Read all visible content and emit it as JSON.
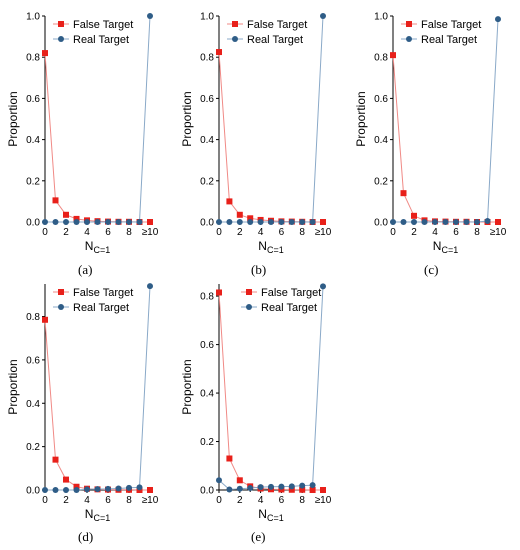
{
  "figure": {
    "panel_labels": [
      "(a)",
      "(b)",
      "(c)",
      "(d)",
      "(e)"
    ]
  },
  "colors": {
    "false_target": "#e8201a",
    "false_target_line": "#f08a86",
    "real_target": "#2f5d87",
    "real_target_line": "#8aa9c8"
  },
  "chart_data": [
    {
      "type": "line",
      "panel": "(a)",
      "xlabel_base": "N",
      "xlabel_sub": "C=1",
      "ylabel": "Proportion",
      "x": [
        0,
        1,
        2,
        3,
        4,
        5,
        6,
        7,
        8,
        9,
        10
      ],
      "xticks": [
        "0",
        "2",
        "4",
        "6",
        "8",
        "≥10"
      ],
      "xtick_pos": [
        0,
        2,
        4,
        6,
        8,
        10
      ],
      "yticks": [
        "0.0",
        "0.2",
        "0.4",
        "0.6",
        "0.8",
        "1.0"
      ],
      "ylim": [
        0,
        1.0
      ],
      "legend_position": "top-left",
      "series": [
        {
          "name": "False Target",
          "values": [
            0.82,
            0.105,
            0.035,
            0.015,
            0.008,
            0.004,
            0.002,
            0.001,
            0.001,
            0,
            0
          ]
        },
        {
          "name": "Real Target",
          "values": [
            0,
            0,
            0,
            0,
            0,
            0,
            0,
            0,
            0,
            0,
            1.0
          ]
        }
      ]
    },
    {
      "type": "line",
      "panel": "(b)",
      "xlabel_base": "N",
      "xlabel_sub": "C=1",
      "ylabel": "Proportion",
      "x": [
        0,
        1,
        2,
        3,
        4,
        5,
        6,
        7,
        8,
        9,
        10
      ],
      "xticks": [
        "0",
        "2",
        "4",
        "6",
        "8",
        "≥10"
      ],
      "xtick_pos": [
        0,
        2,
        4,
        6,
        8,
        10
      ],
      "yticks": [
        "0.0",
        "0.2",
        "0.4",
        "0.6",
        "0.8",
        "1.0"
      ],
      "ylim": [
        0,
        1.0
      ],
      "legend_position": "top-left",
      "series": [
        {
          "name": "False Target",
          "values": [
            0.825,
            0.1,
            0.035,
            0.018,
            0.01,
            0.006,
            0.003,
            0.002,
            0.001,
            0,
            0
          ]
        },
        {
          "name": "Real Target",
          "values": [
            0,
            0,
            0,
            0,
            0,
            0,
            0,
            0,
            0,
            0,
            1.0
          ]
        }
      ]
    },
    {
      "type": "line",
      "panel": "(c)",
      "xlabel_base": "N",
      "xlabel_sub": "C=1",
      "ylabel": "Proportion",
      "x": [
        0,
        1,
        2,
        3,
        4,
        5,
        6,
        7,
        8,
        9,
        10
      ],
      "xticks": [
        "0",
        "2",
        "4",
        "6",
        "8",
        "≥10"
      ],
      "xtick_pos": [
        0,
        2,
        4,
        6,
        8,
        10
      ],
      "yticks": [
        "0.0",
        "0.2",
        "0.4",
        "0.6",
        "0.8",
        "1.0"
      ],
      "ylim": [
        0,
        1.0
      ],
      "legend_position": "top-left",
      "series": [
        {
          "name": "False Target",
          "values": [
            0.81,
            0.14,
            0.03,
            0.008,
            0.003,
            0.002,
            0.001,
            0.001,
            0,
            0,
            0
          ]
        },
        {
          "name": "Real Target",
          "values": [
            0,
            0,
            0,
            0,
            0,
            0,
            0,
            0,
            0,
            0.005,
            0.985
          ]
        }
      ]
    },
    {
      "type": "line",
      "panel": "(d)",
      "xlabel_base": "N",
      "xlabel_sub": "C=1",
      "ylabel": "Proportion",
      "x": [
        0,
        1,
        2,
        3,
        4,
        5,
        6,
        7,
        8,
        9,
        10
      ],
      "xticks": [
        "0",
        "2",
        "4",
        "6",
        "8",
        "≥10"
      ],
      "xtick_pos": [
        0,
        2,
        4,
        6,
        8,
        10
      ],
      "yticks": [
        "0.0",
        "0.2",
        "0.4",
        "0.6",
        "0.8"
      ],
      "ylim": [
        0,
        0.95
      ],
      "legend_position": "top-left",
      "series": [
        {
          "name": "False Target",
          "values": [
            0.785,
            0.14,
            0.048,
            0.015,
            0.006,
            0.003,
            0.002,
            0.001,
            0.001,
            0,
            0
          ]
        },
        {
          "name": "Real Target",
          "values": [
            0,
            0,
            0,
            0,
            0.003,
            0.004,
            0.005,
            0.007,
            0.01,
            0.012,
            0.94
          ]
        }
      ]
    },
    {
      "type": "line",
      "panel": "(e)",
      "xlabel_base": "N",
      "xlabel_sub": "C=1",
      "ylabel": "Proportion",
      "x": [
        0,
        1,
        2,
        3,
        4,
        5,
        6,
        7,
        8,
        9,
        10
      ],
      "xticks": [
        "0",
        "2",
        "4",
        "6",
        "8",
        "≥10"
      ],
      "xtick_pos": [
        0,
        2,
        4,
        6,
        8,
        10
      ],
      "yticks": [
        "0.0",
        "0.2",
        "0.4",
        "0.6",
        "0.8"
      ],
      "ylim": [
        0,
        0.85
      ],
      "legend_position": "top-right",
      "series": [
        {
          "name": "False Target",
          "values": [
            0.815,
            0.13,
            0.04,
            0.015,
            0.006,
            0.003,
            0.002,
            0.001,
            0.001,
            0,
            0
          ]
        },
        {
          "name": "Real Target",
          "values": [
            0.04,
            0.002,
            0.005,
            0.008,
            0.012,
            0.013,
            0.014,
            0.015,
            0.018,
            0.02,
            0.84
          ]
        }
      ]
    }
  ]
}
